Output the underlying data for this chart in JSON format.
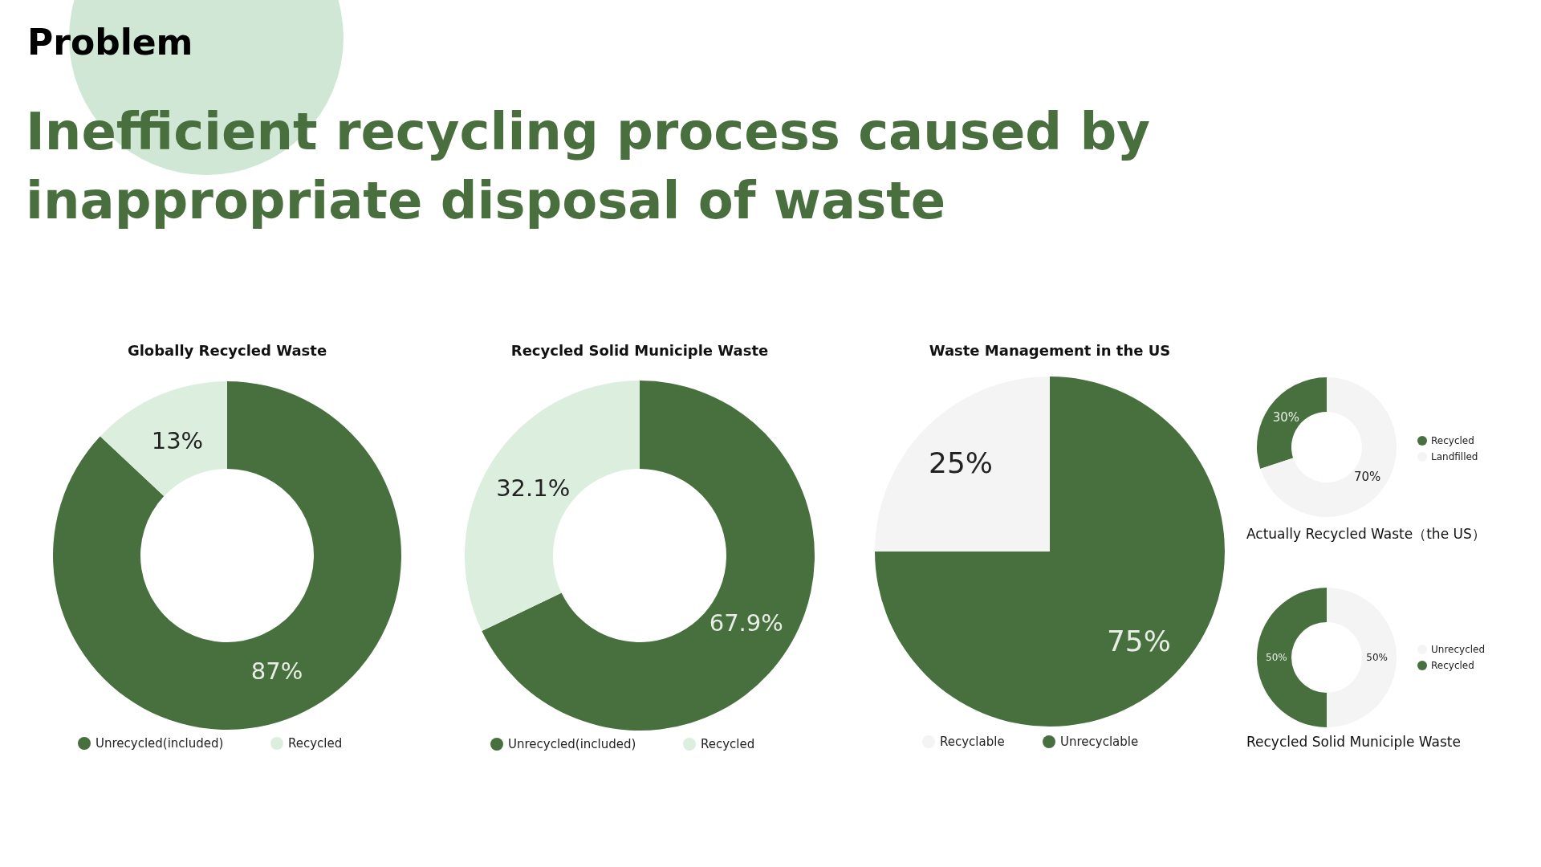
{
  "chart_data": [
    {
      "type": "other",
      "title": "Inefficient recycling process caused by inappropriate disposal of waste",
      "annotations": [
        "Problem"
      ]
    },
    {
      "type": "donut",
      "title": "Globally Recycled Waste",
      "categories": [
        "Unrecycled(included)",
        "Recycled"
      ],
      "values": [
        87,
        13
      ],
      "colors": [
        "#48703e",
        "#dcefdf"
      ],
      "value_labels": [
        "87%",
        "13%"
      ],
      "legend": "bottom"
    },
    {
      "type": "donut",
      "title": "Recycled Solid Municiple Waste",
      "categories": [
        "Unrecycled(included)",
        "Recycled"
      ],
      "values": [
        67.9,
        32.1
      ],
      "colors": [
        "#48703e",
        "#dcefdf"
      ],
      "value_labels": [
        "67.9%",
        "32.1%"
      ],
      "legend": "bottom"
    },
    {
      "type": "pie",
      "title": "Waste Management in the US",
      "categories": [
        "Recyclable",
        "Unrecyclable"
      ],
      "values": [
        25,
        75
      ],
      "colors": [
        "#f4f4f4",
        "#48703e"
      ],
      "value_labels": [
        "25%",
        "75%"
      ],
      "legend": "bottom"
    },
    {
      "type": "donut",
      "title": "Actually Recycled Waste（the US）",
      "categories": [
        "Recycled",
        "Landfilled"
      ],
      "values": [
        30,
        70
      ],
      "colors": [
        "#48703e",
        "#f4f4f4"
      ],
      "value_labels": [
        "30%",
        "70%"
      ],
      "legend": "right"
    },
    {
      "type": "donut",
      "title": "Recycled Solid Municiple Waste",
      "categories": [
        "Unrecycled",
        "Recycled"
      ],
      "values": [
        50,
        50
      ],
      "colors": [
        "#f4f4f4",
        "#48703e"
      ],
      "value_labels": [
        "50%",
        "50%"
      ],
      "legend": "right"
    }
  ]
}
